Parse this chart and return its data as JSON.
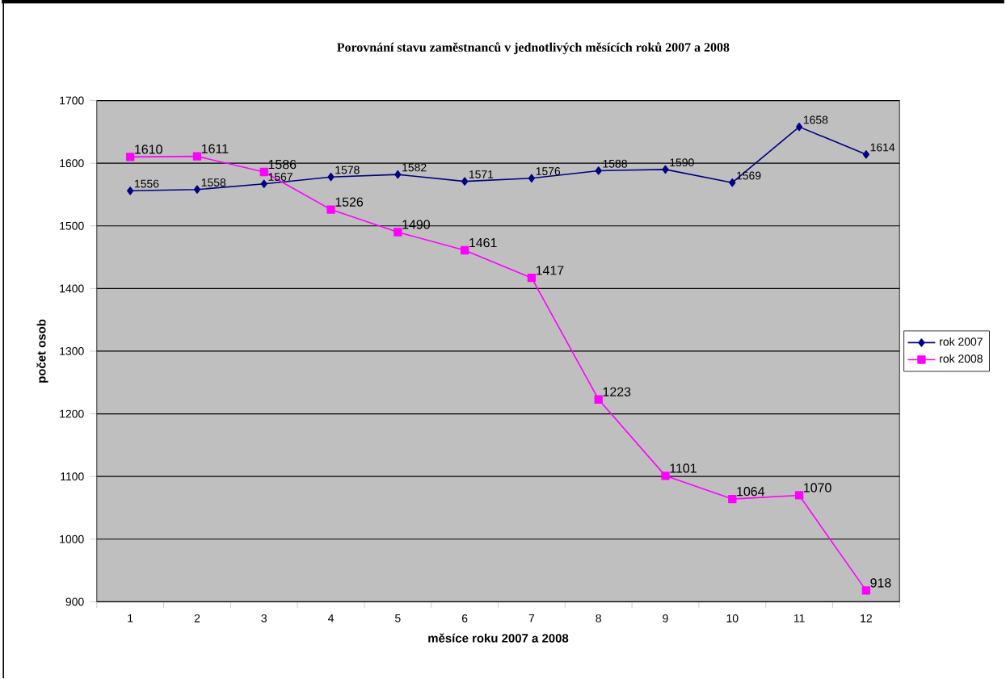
{
  "chart_data": {
    "type": "line",
    "title": "Porovnání stavu zaměstnanců v jednotlivých měsících roků 2007 a 2008",
    "xlabel": "měsíce roku 2007  a 2008",
    "ylabel": "počet osob",
    "categories": [
      "1",
      "2",
      "3",
      "4",
      "5",
      "6",
      "7",
      "8",
      "9",
      "10",
      "11",
      "12"
    ],
    "series": [
      {
        "name": "rok 2007",
        "color": "#000080",
        "marker": "diamond",
        "values": [
          1556,
          1558,
          1567,
          1578,
          1582,
          1571,
          1576,
          1588,
          1590,
          1569,
          1658,
          1614
        ]
      },
      {
        "name": "rok 2008",
        "color": "#ff00ff",
        "marker": "square",
        "values": [
          1610,
          1611,
          1586,
          1526,
          1490,
          1461,
          1417,
          1223,
          1101,
          1064,
          1070,
          918
        ]
      }
    ],
    "ylim": [
      900,
      1700
    ],
    "yticks": [
      900,
      1000,
      1100,
      1200,
      1300,
      1400,
      1500,
      1600,
      1700
    ],
    "grid": "y",
    "legend": "right",
    "data_labels": true
  }
}
